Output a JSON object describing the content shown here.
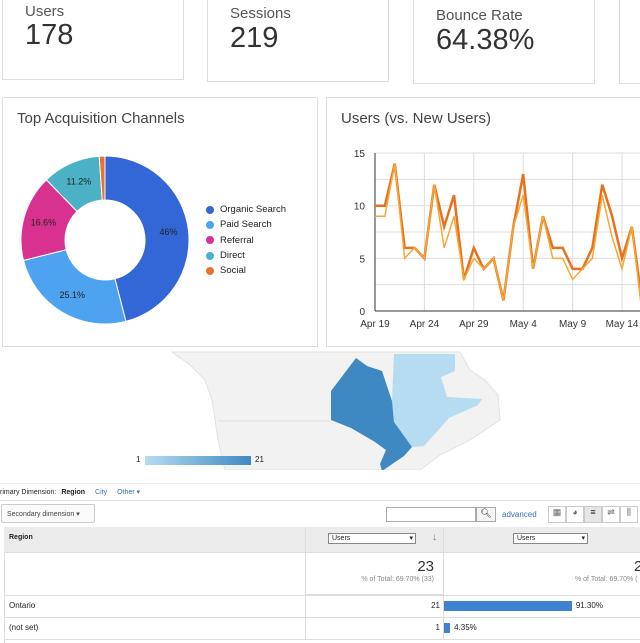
{
  "kpis": [
    {
      "label": "Users",
      "value": "178"
    },
    {
      "label": "Sessions",
      "value": "219"
    },
    {
      "label": "Bounce Rate",
      "value": "64.38%"
    }
  ],
  "acquisition": {
    "title": "Top Acquisition Channels",
    "chart_data": {
      "type": "pie",
      "donut": true,
      "categories": [
        "Organic Search",
        "Paid Search",
        "Referral",
        "Direct",
        "Social"
      ],
      "values": [
        46,
        25.1,
        16.6,
        11.2,
        1.1
      ],
      "labels": [
        "46%",
        "25.1%",
        "16.6%",
        "11.2%",
        ""
      ],
      "colors": [
        "#3366d6",
        "#4ea3f0",
        "#d9318f",
        "#4bb2c5",
        "#ea7332"
      ],
      "legend": "right"
    }
  },
  "users_chart": {
    "title": "Users (vs. New Users)",
    "chart_data": {
      "type": "line",
      "x_ticks": [
        "Apr 19",
        "Apr 24",
        "Apr 29",
        "May 4",
        "May 9",
        "May 14"
      ],
      "y_ticks": [
        "0",
        "5",
        "10",
        "15"
      ],
      "ylim": [
        0,
        15
      ],
      "grid": true,
      "series": [
        {
          "values": [
            10,
            10,
            14,
            6,
            6,
            5,
            12,
            8,
            11,
            3,
            6,
            4,
            5,
            1,
            8,
            13,
            4,
            9,
            6,
            6,
            4,
            4,
            6,
            12,
            9,
            5,
            8,
            1
          ],
          "color": "#e8711f"
        },
        {
          "values": [
            9,
            9,
            14,
            5,
            6,
            5,
            12,
            6,
            9,
            3,
            5,
            4,
            5,
            1,
            8,
            11,
            4,
            9,
            5,
            5,
            3,
            4,
            5,
            11,
            7,
            4,
            8,
            0
          ],
          "color": "#f6a735"
        }
      ]
    }
  },
  "map": {
    "legend_min": "1",
    "legend_max": "21",
    "colors": {
      "low": "#b5dcf0",
      "high": "#3f89c2"
    }
  },
  "dimension": {
    "label": "rimary Dimension:",
    "active": "Region",
    "links": [
      "City",
      "Other"
    ]
  },
  "toolbar": {
    "secondary": "Secondary dimension",
    "search_placeholder": "",
    "advanced": "advanced"
  },
  "table": {
    "col_region": "Region",
    "metric1": "Users",
    "metric2": "Users",
    "total1": "23",
    "total1_sub": "% of Total: 69.70% (33)",
    "total2": "2",
    "total2_sub": "% of Total: 69.70% (",
    "rows": [
      {
        "region": "Ontario",
        "users": "21",
        "pct": "91.30%",
        "frac": 0.913
      },
      {
        "region": "(not set)",
        "users": "1",
        "pct": "4.35%",
        "frac": 0.0435
      }
    ]
  }
}
